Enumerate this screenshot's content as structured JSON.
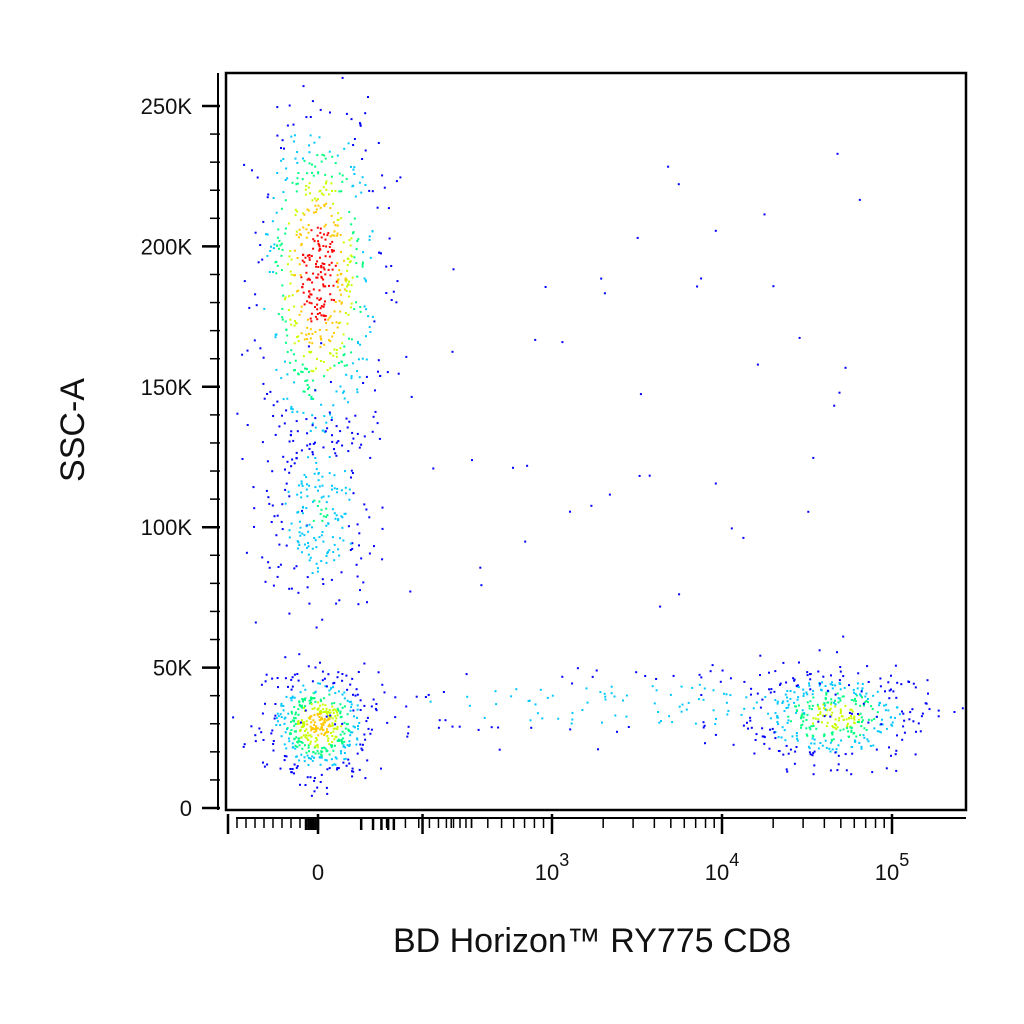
{
  "chart_data": {
    "type": "scatter",
    "plot_style": "density dot plot (flow cytometry, pseudocolor)",
    "xlabel": "BD Horizon™ RY775  CD8",
    "ylabel": "SSC-A",
    "x_scale": "biexponential",
    "y_scale": "linear",
    "ylim": [
      0,
      262144
    ],
    "y_ticks": [
      {
        "value": 0,
        "label": "0"
      },
      {
        "value": 50000,
        "label": "50K"
      },
      {
        "value": 100000,
        "label": "100K"
      },
      {
        "value": 150000,
        "label": "150K"
      },
      {
        "value": 200000,
        "label": "200K"
      },
      {
        "value": 250000,
        "label": "250K"
      }
    ],
    "x_ticks": [
      {
        "value": 0,
        "base": "0",
        "exp": ""
      },
      {
        "value": 1000,
        "base": "10",
        "exp": "3"
      },
      {
        "value": 10000,
        "base": "10",
        "exp": "4"
      },
      {
        "value": 100000,
        "base": "10",
        "exp": "5"
      }
    ],
    "grid": false,
    "legend": "none",
    "color_scale": [
      "#0000ff",
      "#00c8ff",
      "#00ff80",
      "#c8ff00",
      "#ffc800",
      "#ff0000"
    ],
    "populations": [
      {
        "x_center": 0,
        "y_center": 190000,
        "x_spread": 30,
        "y_spread": 30000,
        "relative_density": 1.0
      },
      {
        "x_center": 0,
        "y_center": 105000,
        "x_spread": 30,
        "y_spread": 18000,
        "relative_density": 0.35
      },
      {
        "x_center": 0,
        "y_center": 30000,
        "x_spread": 25,
        "y_spread": 9000,
        "relative_density": 0.75
      },
      {
        "x_center": 45000,
        "y_center": 33000,
        "x_spread": 0.25,
        "y_spread": 8000,
        "relative_density": 0.6
      },
      {
        "x_center": 3000,
        "y_center": 37000,
        "x_spread": 1.2,
        "y_spread": 7000,
        "relative_density": 0.3
      }
    ]
  }
}
